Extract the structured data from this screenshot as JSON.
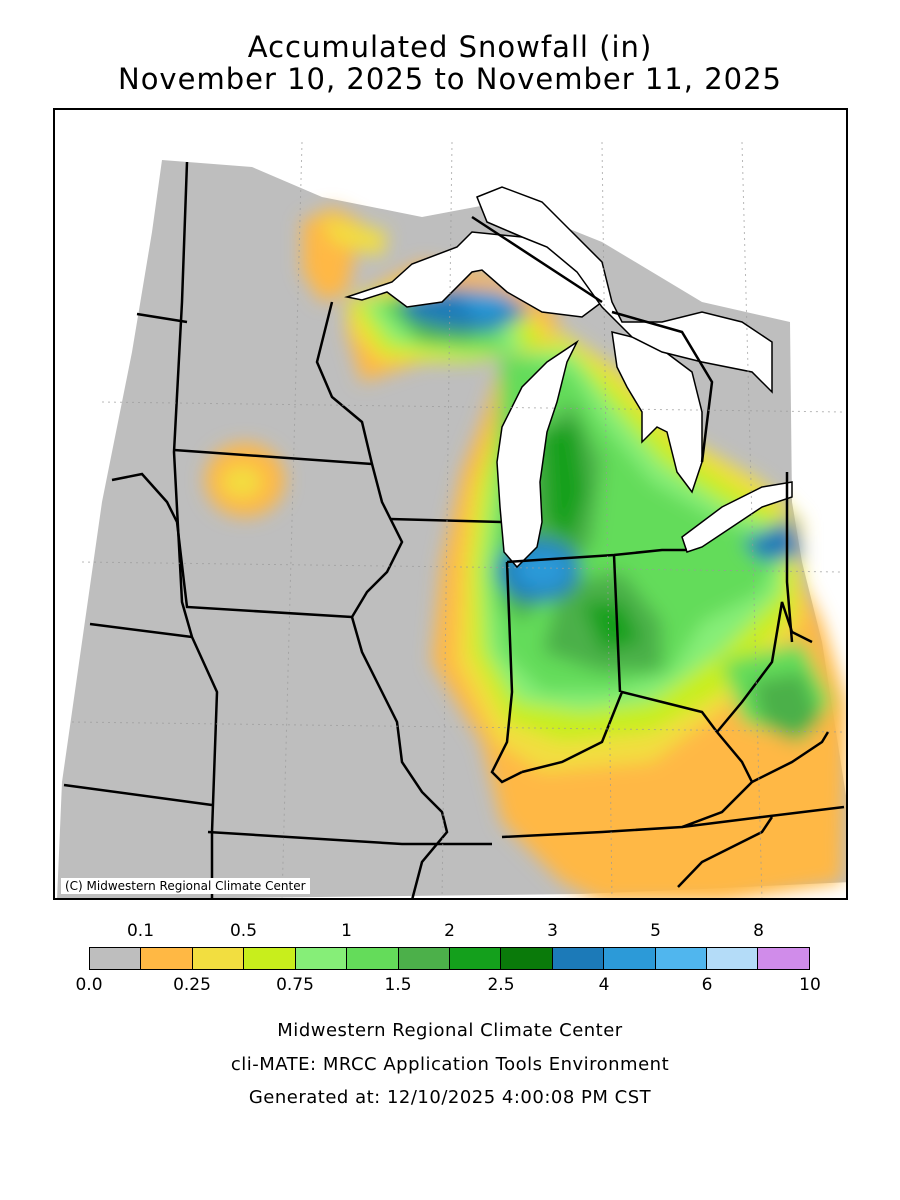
{
  "title_line1": "Accumulated Snowfall (in)",
  "title_line2": "November 10, 2025 to November 11, 2025",
  "copyright": "(C) Midwestern Regional Climate Center",
  "legend": {
    "colors": [
      "#bebebe",
      "#ffb844",
      "#f2de40",
      "#c8ee1c",
      "#86ee78",
      "#64dc5a",
      "#4cb04a",
      "#14a01c",
      "#0a7a0a",
      "#1c7ab8",
      "#2c9ad8",
      "#50b6ee",
      "#b4dcf8",
      "#d08cea"
    ],
    "top_labels": [
      "0.1",
      "0.5",
      "1",
      "2",
      "3",
      "5",
      "8"
    ],
    "bottom_labels": [
      "0.0",
      "0.25",
      "0.75",
      "1.5",
      "2.5",
      "4",
      "6",
      "10"
    ]
  },
  "footer": {
    "line1": "Midwestern Regional Climate Center",
    "line2": "cli-MATE: MRCC Application Tools Environment",
    "line3": "Generated at: 12/10/2025 4:00:08 PM CST"
  }
}
